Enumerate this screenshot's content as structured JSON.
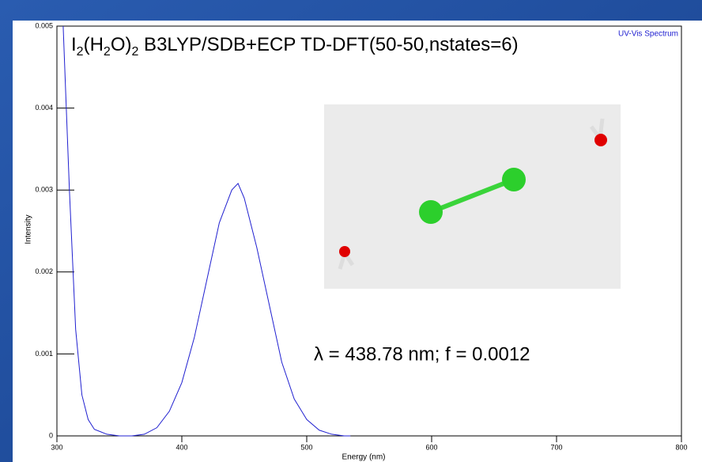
{
  "chart_data": {
    "type": "line",
    "title_parts": [
      {
        "text": "I"
      },
      {
        "text": "2",
        "sub": true
      },
      {
        "text": "(H"
      },
      {
        "text": "2",
        "sub": true
      },
      {
        "text": "O)"
      },
      {
        "text": "2",
        "sub": true
      },
      {
        "text": " B3LYP/SDB+ECP TD-DFT(50-50,nstates=6)"
      }
    ],
    "subtitle": "UV-Vis Spectrum",
    "annotation": "λ = 438.78 nm; f = 0.0012",
    "x_label": "Energy (nm)",
    "y_label": "Intensity",
    "x": [
      305,
      310,
      315,
      320,
      325,
      330,
      340,
      350,
      360,
      370,
      380,
      390,
      400,
      410,
      420,
      430,
      440,
      445,
      450,
      460,
      470,
      480,
      490,
      500,
      510,
      520,
      530,
      535
    ],
    "series": [
      {
        "color": "#2020d0",
        "values": [
          0.005,
          0.003,
          0.0013,
          0.0005,
          0.0002,
          8e-05,
          2e-05,
          0,
          0,
          2e-05,
          0.0001,
          0.0003,
          0.00065,
          0.0012,
          0.0019,
          0.0026,
          0.003,
          0.00308,
          0.0029,
          0.0023,
          0.0016,
          0.0009,
          0.00045,
          0.0002,
          7e-05,
          2e-05,
          0,
          0
        ]
      }
    ],
    "xlim": [
      300,
      800
    ],
    "ylim": [
      0,
      0.005
    ],
    "xticks": [
      300,
      400,
      500,
      600,
      700,
      800
    ],
    "yticks": [
      0,
      0.001,
      0.002,
      0.003,
      0.004,
      0.005
    ]
  }
}
